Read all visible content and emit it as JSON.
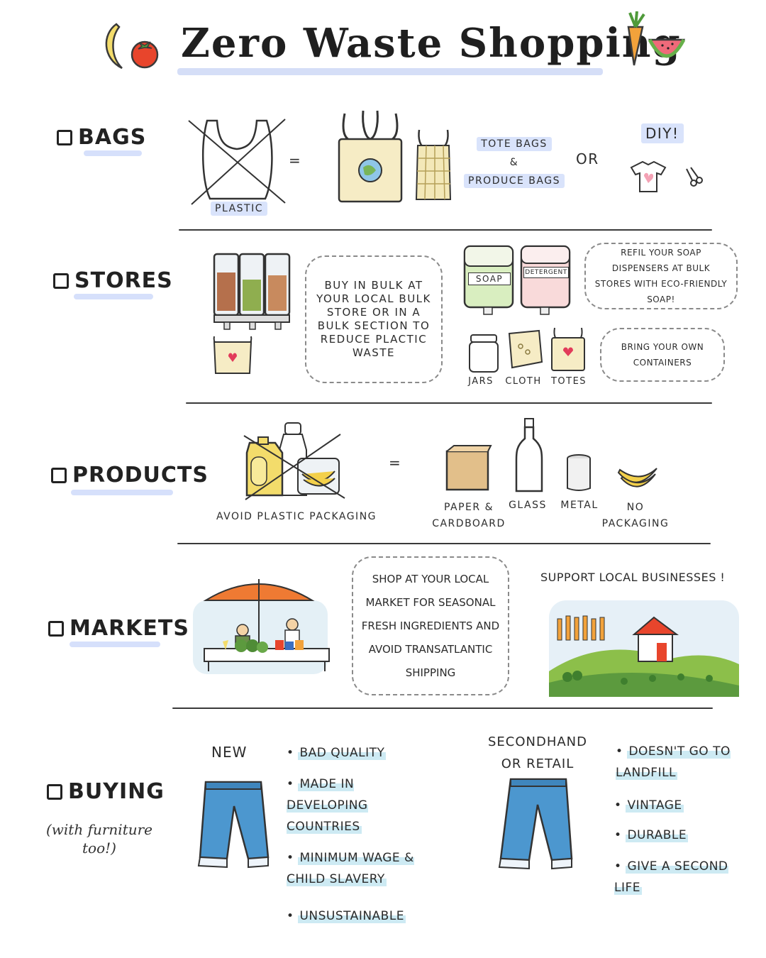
{
  "title": "Zero Waste Shopping",
  "sections": {
    "bags": {
      "label": "BAGS",
      "plastic_caption": "PLASTIC",
      "equals": "=",
      "tote_line1": "TOTE BAGS",
      "tote_line2": "&",
      "tote_line3": "PRODUCE BAGS",
      "or": "OR",
      "diy": "DIY!"
    },
    "stores": {
      "label": "STORES",
      "bulk_text": "BUY IN BULK AT YOUR LOCAL BULK STORE OR IN A BULK SECTION TO REDUCE PLACTIC WASTE",
      "soap_label": "SOAP",
      "detergent_label": "DETERGENT",
      "refill_text": "REFIL YOUR SOAP DISPENSERS AT BULK STORES WITH ECO-FRIENDLY SOAP!",
      "bring_text": "BRING YOUR OWN CONTAINERS",
      "jars": "JARS",
      "cloth": "CLOTH",
      "totes": "TOTES"
    },
    "products": {
      "label": "PRODUCTS",
      "avoid_caption": "AVOID PLASTIC PACKAGING",
      "equals": "=",
      "paper": "PAPER & CARDBOARD",
      "glass": "GLASS",
      "metal": "METAL",
      "no_packaging": "NO PACKAGING"
    },
    "markets": {
      "label": "MARKETS",
      "market_text": "SHOP AT YOUR LOCAL MARKET FOR SEASONAL FRESH INGREDIENTS AND AVOID TRANSATLANTIC SHIPPING",
      "support_text": "SUPPORT LOCAL BUSINESSES !"
    },
    "buying": {
      "label": "BUYING",
      "note": "(with furniture too!)",
      "new_heading": "NEW",
      "new_points": [
        "BAD QUALITY",
        "MADE IN DEVELOPING COUNTRIES",
        "MINIMUM WAGE & CHILD SLAVERY",
        "UNSUSTAINABLE"
      ],
      "second_heading": "SECONDHAND OR RETAIL",
      "second_points": [
        "DOESN'T GO TO LANDFILL",
        "VINTAGE",
        "DURABLE",
        "GIVE A SECOND LIFE"
      ]
    }
  }
}
